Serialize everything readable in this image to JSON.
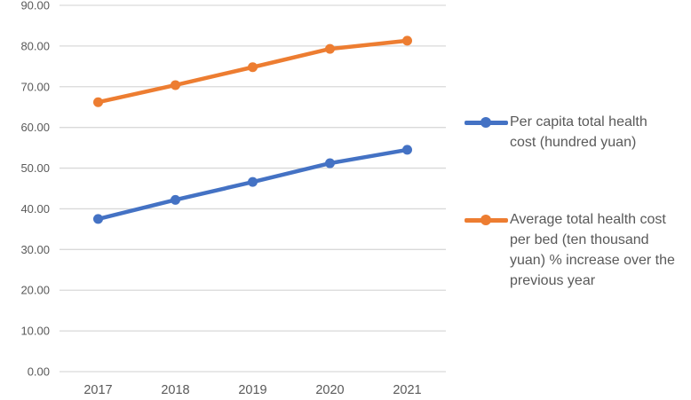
{
  "chart_data": {
    "type": "line",
    "categories": [
      "2017",
      "2018",
      "2019",
      "2020",
      "2021"
    ],
    "series": [
      {
        "name": "Per capita total health cost (hundred yuan)",
        "color": "#4472C4",
        "values": [
          37.5,
          42.2,
          46.6,
          51.2,
          54.5
        ]
      },
      {
        "name": "Average total health cost per bed (ten thousand yuan) % increase over the previous year",
        "color": "#ED7D31",
        "values": [
          66.2,
          70.4,
          74.8,
          79.3,
          81.3
        ]
      }
    ],
    "ylim": [
      0,
      90
    ],
    "y_tick_step": 10,
    "y_tick_labels": [
      "0.00",
      "10.00",
      "20.00",
      "30.00",
      "40.00",
      "50.00",
      "60.00",
      "70.00",
      "80.00",
      "90.00"
    ],
    "grid": true,
    "legend_position": "right",
    "marker": "circle",
    "colors": {
      "gridline": "#D9D9D9",
      "axis_text": "#595959",
      "legend_text": "#595959",
      "background": "#FFFFFF"
    }
  }
}
